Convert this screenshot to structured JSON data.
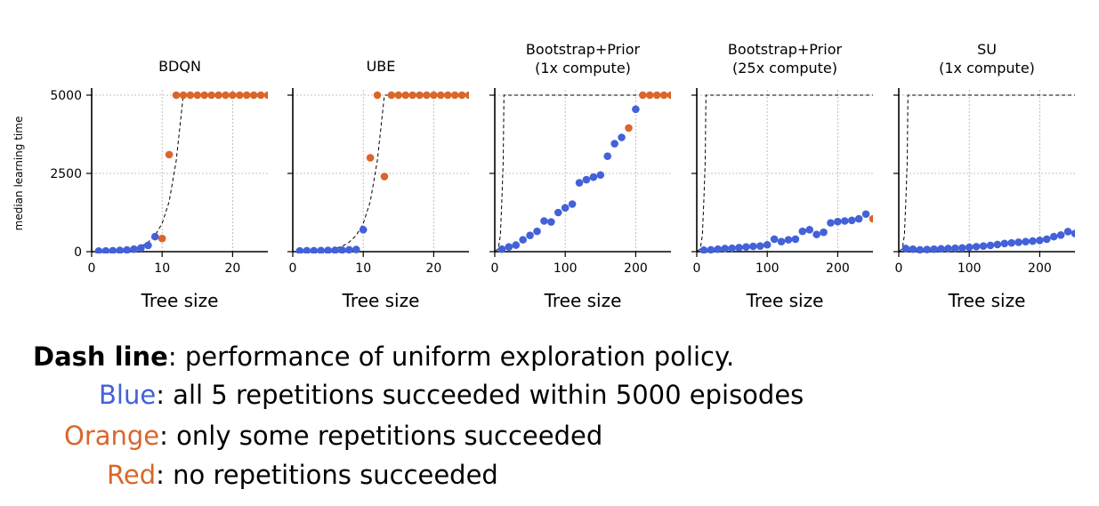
{
  "ylabel": "median learning time",
  "xlabel": "Tree size",
  "colors": {
    "blue": "#4361d8",
    "orange": "#d9662a",
    "grid": "#b0b0b0"
  },
  "chart_data": [
    {
      "type": "scatter",
      "title": [
        "BDQN"
      ],
      "xlim": [
        0,
        25
      ],
      "ylim": [
        0,
        5000
      ],
      "xticks": [
        0,
        10,
        20
      ],
      "yticks": [
        0,
        2500,
        5000
      ],
      "dashed_curve": {
        "x": [
          1,
          2,
          3,
          4,
          5,
          6,
          7,
          8,
          9,
          10,
          11,
          12,
          13,
          14,
          25
        ],
        "y": [
          10,
          15,
          25,
          40,
          60,
          100,
          170,
          300,
          520,
          900,
          1600,
          2900,
          5000,
          5000,
          5000
        ]
      },
      "series": [
        {
          "color": "blue",
          "x": [
            1,
            2,
            3,
            4,
            5,
            6,
            7,
            8,
            9
          ],
          "y": [
            20,
            25,
            30,
            40,
            55,
            80,
            120,
            200,
            480
          ]
        },
        {
          "color": "orange",
          "x": [
            10,
            11,
            12,
            13,
            14,
            15,
            16,
            17,
            18,
            19,
            20,
            21,
            22,
            23,
            24,
            25
          ],
          "y": [
            420,
            3100,
            5000,
            5000,
            5000,
            5000,
            5000,
            5000,
            5000,
            5000,
            5000,
            5000,
            5000,
            5000,
            5000,
            5000
          ]
        }
      ]
    },
    {
      "type": "scatter",
      "title": [
        "UBE"
      ],
      "xlim": [
        0,
        25
      ],
      "ylim": [
        0,
        5000
      ],
      "xticks": [
        0,
        10,
        20
      ],
      "yticks": [
        0,
        2500,
        5000
      ],
      "dashed_curve": {
        "x": [
          1,
          2,
          3,
          4,
          5,
          6,
          7,
          8,
          9,
          10,
          11,
          12,
          13,
          25
        ],
        "y": [
          10,
          15,
          25,
          40,
          60,
          100,
          170,
          300,
          520,
          900,
          1600,
          2900,
          5000,
          5000
        ]
      },
      "series": [
        {
          "color": "blue",
          "x": [
            1,
            2,
            3,
            4,
            5,
            6,
            7,
            8,
            9,
            10
          ],
          "y": [
            25,
            30,
            30,
            35,
            40,
            45,
            50,
            60,
            70,
            700
          ]
        },
        {
          "color": "orange",
          "x": [
            11,
            12,
            13,
            14,
            15,
            16,
            17,
            18,
            19,
            20,
            21,
            22,
            23,
            24,
            25
          ],
          "y": [
            3000,
            5000,
            2400,
            5000,
            5000,
            5000,
            5000,
            5000,
            5000,
            5000,
            5000,
            5000,
            5000,
            5000,
            5000
          ]
        }
      ]
    },
    {
      "type": "scatter",
      "title": [
        "Bootstrap+Prior",
        "(1x compute)"
      ],
      "xlim": [
        0,
        250
      ],
      "ylim": [
        0,
        5000
      ],
      "xticks": [
        0,
        100,
        200
      ],
      "yticks": [
        0,
        2500,
        5000
      ],
      "dashed_curve": {
        "x": [
          1,
          5,
          8,
          10,
          12,
          13,
          250
        ],
        "y": [
          10,
          100,
          520,
          1600,
          2900,
          5000,
          5000
        ]
      },
      "series": [
        {
          "color": "blue",
          "x": [
            10,
            20,
            30,
            40,
            50,
            60,
            70,
            80,
            90,
            100,
            110,
            120,
            130,
            140,
            150,
            160,
            170,
            180,
            200
          ],
          "y": [
            80,
            150,
            210,
            380,
            520,
            650,
            980,
            950,
            1250,
            1400,
            1520,
            2200,
            2300,
            2380,
            2450,
            3050,
            3450,
            3650,
            4550
          ]
        },
        {
          "color": "orange",
          "x": [
            190,
            210,
            220,
            230,
            240,
            250
          ],
          "y": [
            3950,
            5000,
            5000,
            5000,
            5000,
            5000
          ]
        }
      ]
    },
    {
      "type": "scatter",
      "title": [
        "Bootstrap+Prior",
        "(25x compute)"
      ],
      "xlim": [
        0,
        250
      ],
      "ylim": [
        0,
        5000
      ],
      "xticks": [
        0,
        100,
        200
      ],
      "yticks": [
        0,
        2500,
        5000
      ],
      "dashed_curve": {
        "x": [
          1,
          5,
          8,
          10,
          12,
          13,
          250
        ],
        "y": [
          10,
          100,
          520,
          1600,
          2900,
          5000,
          5000
        ]
      },
      "series": [
        {
          "color": "blue",
          "x": [
            10,
            20,
            30,
            40,
            50,
            60,
            70,
            80,
            90,
            100,
            110,
            120,
            130,
            140,
            150,
            160,
            170,
            180,
            190,
            200,
            210,
            220,
            230,
            240
          ],
          "y": [
            50,
            60,
            80,
            100,
            110,
            130,
            150,
            170,
            180,
            220,
            400,
            320,
            380,
            400,
            650,
            700,
            550,
            620,
            920,
            960,
            980,
            1000,
            1050,
            1200
          ]
        },
        {
          "color": "orange",
          "x": [
            250
          ],
          "y": [
            1050
          ]
        }
      ]
    },
    {
      "type": "scatter",
      "title": [
        "SU",
        "(1x compute)"
      ],
      "xlim": [
        0,
        250
      ],
      "ylim": [
        0,
        5000
      ],
      "xticks": [
        0,
        100,
        200
      ],
      "yticks": [
        0,
        2500,
        5000
      ],
      "dashed_curve": {
        "x": [
          1,
          5,
          8,
          10,
          12,
          13,
          250
        ],
        "y": [
          10,
          100,
          520,
          1600,
          2900,
          5000,
          5000
        ]
      },
      "series": [
        {
          "color": "blue",
          "x": [
            10,
            20,
            30,
            40,
            50,
            60,
            70,
            80,
            90,
            100,
            110,
            120,
            130,
            140,
            150,
            160,
            170,
            180,
            190,
            200,
            210,
            220,
            230,
            240,
            250
          ],
          "y": [
            100,
            80,
            60,
            70,
            80,
            90,
            100,
            110,
            120,
            140,
            160,
            180,
            200,
            230,
            260,
            280,
            300,
            320,
            340,
            360,
            400,
            480,
            530,
            640,
            580
          ]
        }
      ]
    }
  ],
  "legend": {
    "dash": {
      "label": "Dash line",
      "text": ": performance of uniform exploration policy."
    },
    "blue": {
      "label": "Blue",
      "text": ": all 5 repetitions succeeded within 5000 episodes"
    },
    "orange": {
      "label": "Orange",
      "text": ": only some repetitions succeeded"
    },
    "red": {
      "label": "Red",
      "text": ": no repetitions succeeded"
    }
  }
}
